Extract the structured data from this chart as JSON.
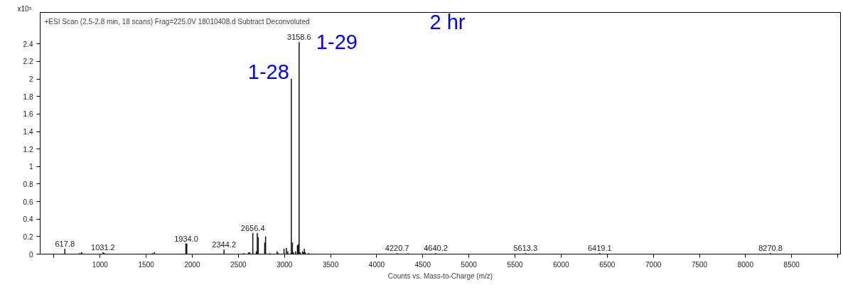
{
  "chart_data": {
    "type": "bar",
    "title": "+ESI Scan (2.5-2.8 min, 18 scans) Frag=225.0V 18010408.d  Subtract Deconvoluted",
    "xlabel": "Counts vs. Mass-to-Charge (m/z)",
    "ylabel": "x10⁵",
    "xlim": [
      350,
      9030
    ],
    "xticks": [
      {
        "value": 500,
        "label": null
      },
      1000,
      1500,
      2000,
      2500,
      3000,
      3500,
      4000,
      4500,
      5000,
      5500,
      6000,
      6500,
      7000,
      7500,
      8000,
      8500,
      {
        "value": 9000,
        "label": null
      }
    ],
    "ylim": [
      0,
      2.76
    ],
    "yticks": [
      0,
      0.2,
      0.4,
      0.6,
      0.8,
      1,
      1.2,
      1.4,
      1.6,
      1.8,
      2,
      2.2,
      2.4
    ],
    "grid": false,
    "series": [
      {
        "color": "#000000",
        "x": [
          617.8,
          780,
          800,
          1031.2,
          1045,
          1570,
          1590,
          1930,
          1940,
          2344.2,
          2560,
          2610,
          2625,
          2656.4,
          2695,
          2705,
          2715,
          2785,
          2795,
          2840,
          2920,
          2930,
          2995,
          3020,
          3035,
          3085,
          3095,
          3120,
          3140,
          3150,
          3170,
          3195,
          3205,
          3215,
          3225,
          3260,
          4220.7,
          4340,
          4640.2,
          5613.3,
          6419.1,
          8270.8
        ],
        "values": [
          0.06,
          0.01,
          0.02,
          0.02,
          0.01,
          0.01,
          0.02,
          0.12,
          0.12,
          0.05,
          0.01,
          0.02,
          0.02,
          0.24,
          0.03,
          0.24,
          0.19,
          0.13,
          0.2,
          0.01,
          0.03,
          0.01,
          0.06,
          0.07,
          0.03,
          0.13,
          0.02,
          0.03,
          0.1,
          0.11,
          0.02,
          0.03,
          0.02,
          0.06,
          0.02,
          0.01,
          0.01,
          0.01,
          0.01,
          0.01,
          0.01,
          0.01
        ]
      },
      {
        "name": "1-28",
        "color": "#000000",
        "x": [
          3074
        ],
        "values": [
          2.0
        ]
      },
      {
        "name": "1-29",
        "color": "#000000",
        "x": [
          3158.6
        ],
        "values": [
          2.42
        ]
      }
    ],
    "annotations": [
      "2 hr",
      {
        "text": "617.8",
        "x": 617.8,
        "y": 0.06
      },
      {
        "text": "1031.2",
        "x": 1031.2,
        "y": 0.02
      },
      {
        "text": "1934.0",
        "x": 1934.0,
        "y": 0.12
      },
      {
        "text": "2344.2",
        "x": 2344.2,
        "y": 0.05
      },
      {
        "text": "2656.4",
        "x": 2656.4,
        "y": 0.24
      },
      {
        "text": "3158.6",
        "x": 3158.6,
        "y": 2.42
      },
      {
        "text": "4220.7",
        "x": 4220.7,
        "y": 0.01
      },
      {
        "text": "4640.2",
        "x": 4640.2,
        "y": 0.01
      },
      {
        "text": "5613.3",
        "x": 5613.3,
        "y": 0.01
      },
      {
        "text": "6419.1",
        "x": 6419.1,
        "y": 0.01
      },
      {
        "text": "8270.8",
        "x": 8270.8,
        "y": 0.01
      }
    ]
  }
}
